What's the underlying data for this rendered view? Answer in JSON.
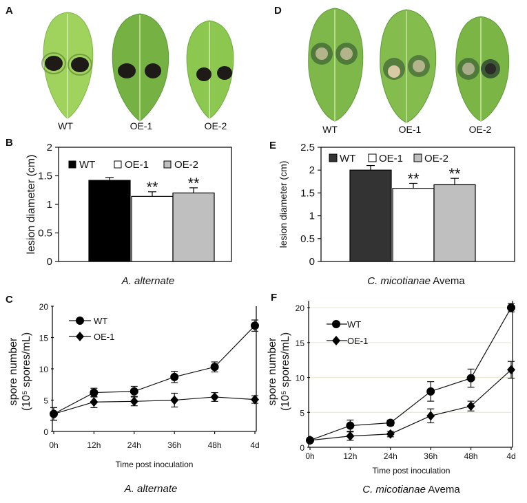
{
  "panels": {
    "A": {
      "letter": "A",
      "leaf_labels": [
        "WT",
        "OE-1",
        "OE-2"
      ]
    },
    "D": {
      "letter": "D",
      "leaf_labels": [
        "WT",
        "OE-1",
        "OE-2"
      ]
    }
  },
  "colors": {
    "WT": "#000000",
    "OE-1": "#ffffff",
    "OE-2": "#bfbfbf",
    "WT_E": "#333333",
    "leaf_green": "#8cc850",
    "leaf_dark": "#5f9a3a",
    "lesion": "#1e1a18"
  },
  "chart_data": [
    {
      "id": "B",
      "letter": "B",
      "type": "bar",
      "categories": [
        "WT",
        "OE-1",
        "OE-2"
      ],
      "values": [
        1.42,
        1.14,
        1.2
      ],
      "errors": [
        0.05,
        0.08,
        0.09
      ],
      "significance": [
        "",
        "**",
        "**"
      ],
      "ylabel": "lesion diameter (cm)",
      "yticks": [
        "0",
        "0.5",
        "1",
        "1.5",
        "2"
      ],
      "ylim": [
        0,
        2
      ],
      "legend": [
        "WT",
        "OE-1",
        "OE-2"
      ],
      "xlabel": "A. alternate"
    },
    {
      "id": "E",
      "letter": "E",
      "type": "bar",
      "categories": [
        "WT",
        "OE-1",
        "OE-2"
      ],
      "values": [
        2.0,
        1.6,
        1.68
      ],
      "errors": [
        0.1,
        0.11,
        0.14
      ],
      "significance": [
        "",
        "**",
        "**"
      ],
      "ylabel": "lesion diameter (cm)",
      "yticks": [
        "0",
        "0.5",
        "1",
        "1.5",
        "2",
        "2.5"
      ],
      "ylim": [
        0,
        2.5
      ],
      "legend": [
        "WT",
        "OE-1",
        "OE-2"
      ],
      "xlabel_italic": "C. micotianae",
      "xlabel_suffix": " Avema"
    },
    {
      "id": "C",
      "letter": "C",
      "type": "line",
      "x": [
        "0h",
        "12h",
        "24h",
        "36h",
        "48h",
        "4d"
      ],
      "series": [
        {
          "name": "WT",
          "marker": "circle",
          "values": [
            2.8,
            6.2,
            6.4,
            8.7,
            10.3,
            16.9
          ],
          "errors": [
            1.0,
            0.7,
            0.8,
            0.9,
            0.8,
            0.9
          ]
        },
        {
          "name": "OE-1",
          "marker": "diamond",
          "values": [
            2.8,
            4.7,
            4.8,
            5.0,
            5.5,
            5.1
          ],
          "errors": [
            1.0,
            0.9,
            0.7,
            1.1,
            0.7,
            0.6
          ]
        }
      ],
      "ylabel_line1": "spore number",
      "ylabel_line2": "(10⁵ spores/mL)",
      "yticks": [
        "0",
        "5",
        "10",
        "15",
        "20"
      ],
      "ylim": [
        0,
        20
      ],
      "xlabel": "Time post inoculation",
      "caption": "A. alternate"
    },
    {
      "id": "F",
      "letter": "F",
      "type": "line",
      "x": [
        "0h",
        "12h",
        "24h",
        "36h",
        "48h",
        "4d"
      ],
      "series": [
        {
          "name": "WT",
          "marker": "circle",
          "values": [
            1.0,
            3.1,
            3.5,
            8.0,
            9.9,
            20.0
          ],
          "errors": [
            0.3,
            0.8,
            0.4,
            1.4,
            1.3,
            0.6
          ]
        },
        {
          "name": "OE-1",
          "marker": "diamond",
          "values": [
            1.0,
            1.6,
            1.9,
            4.5,
            5.9,
            11.1
          ],
          "errors": [
            0.3,
            0.6,
            0.4,
            1.0,
            0.7,
            1.2
          ]
        }
      ],
      "ylabel_line1": "spore number",
      "ylabel_line2": "(10⁵ spores/mL)",
      "yticks": [
        "0",
        "5",
        "10",
        "15",
        "20"
      ],
      "ylim": [
        0,
        21
      ],
      "xlabel": "Time post inoculation",
      "caption_italic": "C. micotianae",
      "caption_suffix": " Avema"
    }
  ]
}
